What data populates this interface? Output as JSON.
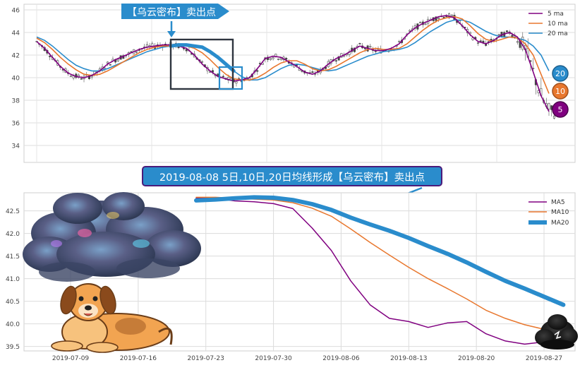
{
  "annotations": {
    "top_callout": "【乌云密布】卖出点",
    "mid_banner": "2019-08-08 5日,10日,20日均线形成【乌云密布】卖出点"
  },
  "colors": {
    "ma5": "#800080",
    "ma10": "#e8772e",
    "ma20": "#2a8ccc",
    "callout_bg": "#2a8ccc",
    "banner_bg": "#2a8ccc",
    "banner_border": "#4b1b7a",
    "box": "#2f3640"
  },
  "chart_data": [
    {
      "type": "line",
      "subtype": "candlestick_with_moving_averages",
      "ylim": [
        32.5,
        46.5
      ],
      "y_ticks": [
        34,
        36,
        38,
        40,
        42,
        44,
        46
      ],
      "grid": true,
      "legend_position": "top-right",
      "legend": [
        "5 ma",
        "10 ma",
        "20 ma"
      ],
      "end_badges": [
        "20",
        "10",
        "5"
      ],
      "series": [
        {
          "name": "5 ma",
          "values": [
            43.2,
            42.6,
            41.8,
            41.0,
            40.4,
            40.1,
            40.0,
            40.2,
            40.6,
            41.2,
            41.6,
            41.9,
            42.2,
            42.5,
            42.7,
            42.8,
            42.9,
            42.9,
            42.8,
            42.6,
            42.0,
            41.2,
            40.6,
            40.1,
            39.9,
            39.7,
            39.8,
            40.0,
            40.8,
            41.7,
            41.9,
            41.8,
            41.4,
            41.0,
            40.5,
            40.3,
            40.6,
            41.2,
            41.7,
            42.0,
            42.4,
            42.8,
            42.6,
            42.4,
            42.4,
            42.6,
            43.0,
            43.8,
            44.4,
            44.8,
            45.1,
            45.4,
            45.5,
            45.3,
            44.6,
            43.8,
            43.2,
            43.0,
            43.3,
            43.8,
            44.0,
            43.6,
            42.5,
            40.5,
            38.4,
            37.0
          ]
        },
        {
          "name": "10 ma",
          "values": [
            43.5,
            43.1,
            42.5,
            41.8,
            41.2,
            40.7,
            40.3,
            40.2,
            40.3,
            40.6,
            41.0,
            41.4,
            41.8,
            42.2,
            42.5,
            42.7,
            42.8,
            42.8,
            42.8,
            42.8,
            42.6,
            42.2,
            41.6,
            40.9,
            40.3,
            39.9,
            39.8,
            39.8,
            40.0,
            40.4,
            40.9,
            41.3,
            41.5,
            41.5,
            41.2,
            40.8,
            40.6,
            40.7,
            41.0,
            41.4,
            41.8,
            42.2,
            42.5,
            42.6,
            42.5,
            42.5,
            42.6,
            43.0,
            43.6,
            44.2,
            44.7,
            45.1,
            45.3,
            45.4,
            45.2,
            44.6,
            43.9,
            43.4,
            43.2,
            43.4,
            43.6,
            43.5,
            43.0,
            42.0,
            40.3,
            38.6
          ]
        },
        {
          "name": "20 ma",
          "values": [
            43.6,
            43.3,
            42.8,
            42.2,
            41.6,
            41.1,
            40.8,
            40.6,
            40.6,
            40.8,
            41.1,
            41.4,
            41.7,
            42.0,
            42.3,
            42.5,
            42.7,
            42.8,
            42.9,
            42.9,
            42.8,
            42.7,
            42.3,
            41.8,
            41.2,
            40.6,
            40.1,
            39.8,
            39.8,
            40.0,
            40.4,
            40.8,
            41.1,
            41.2,
            41.1,
            40.9,
            40.7,
            40.6,
            40.7,
            41.0,
            41.3,
            41.6,
            41.9,
            42.1,
            42.3,
            42.4,
            42.5,
            42.7,
            43.1,
            43.6,
            44.1,
            44.5,
            44.9,
            45.1,
            45.1,
            44.9,
            44.5,
            44.1,
            43.8,
            43.6,
            43.6,
            43.5,
            43.3,
            42.8,
            42.0,
            40.6
          ]
        }
      ]
    },
    {
      "type": "line",
      "x_ticks": [
        "2019-07-09",
        "2019-07-16",
        "2019-07-23",
        "2019-07-30",
        "2019-08-06",
        "2019-08-13",
        "2019-08-20",
        "2019-08-27"
      ],
      "ylim": [
        39.4,
        42.9
      ],
      "y_ticks": [
        "39.5",
        "40.0",
        "40.5",
        "41.0",
        "41.5",
        "42.0",
        "42.5"
      ],
      "grid": true,
      "legend_position": "top-right",
      "series": [
        {
          "name": "MA5",
          "x": [
            "2019-07-22",
            "2019-07-24",
            "2019-07-26",
            "2019-07-28",
            "2019-07-30",
            "2019-08-01",
            "2019-08-03",
            "2019-08-05",
            "2019-08-07",
            "2019-08-09",
            "2019-08-11",
            "2019-08-13",
            "2019-08-15",
            "2019-08-17",
            "2019-08-19",
            "2019-08-21",
            "2019-08-23",
            "2019-08-25",
            "2019-08-27",
            "2019-08-29"
          ],
          "values": [
            42.78,
            42.78,
            42.72,
            42.7,
            42.66,
            42.55,
            42.12,
            41.62,
            40.95,
            40.42,
            40.12,
            40.05,
            39.92,
            40.02,
            40.05,
            39.78,
            39.62,
            39.55,
            39.6,
            39.55
          ]
        },
        {
          "name": "MA10",
          "x": [
            "2019-07-22",
            "2019-07-24",
            "2019-07-26",
            "2019-07-28",
            "2019-07-30",
            "2019-08-01",
            "2019-08-03",
            "2019-08-05",
            "2019-08-07",
            "2019-08-09",
            "2019-08-11",
            "2019-08-13",
            "2019-08-15",
            "2019-08-17",
            "2019-08-19",
            "2019-08-21",
            "2019-08-23",
            "2019-08-25",
            "2019-08-27",
            "2019-08-29"
          ],
          "values": [
            42.8,
            42.8,
            42.78,
            42.76,
            42.74,
            42.68,
            42.56,
            42.38,
            42.1,
            41.8,
            41.52,
            41.25,
            41.0,
            40.78,
            40.55,
            40.3,
            40.12,
            39.98,
            39.88,
            39.78
          ]
        },
        {
          "name": "MA20",
          "x": [
            "2019-07-22",
            "2019-07-24",
            "2019-07-26",
            "2019-07-28",
            "2019-07-30",
            "2019-08-01",
            "2019-08-03",
            "2019-08-05",
            "2019-08-07",
            "2019-08-09",
            "2019-08-11",
            "2019-08-13",
            "2019-08-15",
            "2019-08-17",
            "2019-08-19",
            "2019-08-21",
            "2019-08-23",
            "2019-08-25",
            "2019-08-27",
            "2019-08-29"
          ],
          "values": [
            42.73,
            42.75,
            42.78,
            42.8,
            42.79,
            42.74,
            42.65,
            42.52,
            42.35,
            42.2,
            42.06,
            41.9,
            41.72,
            41.55,
            41.36,
            41.15,
            40.95,
            40.78,
            40.6,
            40.42
          ]
        }
      ]
    }
  ]
}
